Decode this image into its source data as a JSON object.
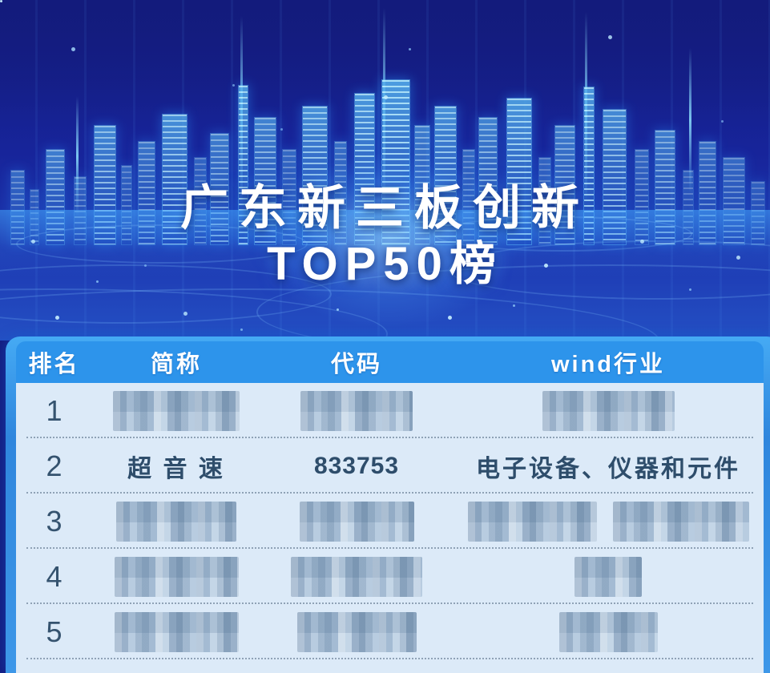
{
  "title": {
    "line1": "广东新三板创新",
    "line2": "TOP50榜"
  },
  "table": {
    "columns": [
      {
        "key": "rank",
        "label": "排名"
      },
      {
        "key": "name",
        "label": "简称"
      },
      {
        "key": "code",
        "label": "代码"
      },
      {
        "key": "industry",
        "label": "wind行业"
      }
    ],
    "rows": [
      {
        "rank": "1",
        "name": null,
        "code": null,
        "industry": null
      },
      {
        "rank": "2",
        "name": "超 音 速",
        "code": "833753",
        "industry": "电子设备、仪器和元件"
      },
      {
        "rank": "3",
        "name": null,
        "code": null,
        "industry": null
      },
      {
        "rank": "4",
        "name": null,
        "code": null,
        "industry": null
      },
      {
        "rank": "5",
        "name": null,
        "code": null,
        "industry": null
      }
    ]
  },
  "colors": {
    "background_navy": "#141d82",
    "skyline_glow": "#2ea8ff",
    "card_border_blue": "#3d97e8",
    "header_blue": "#2d94eb",
    "body_light_blue": "#dceaf8",
    "body_text": "#2e4d6b",
    "divider_dots": "#8fa2b6",
    "redacted_mosaic": "#a9bfd4",
    "title_white": "#ffffff"
  }
}
